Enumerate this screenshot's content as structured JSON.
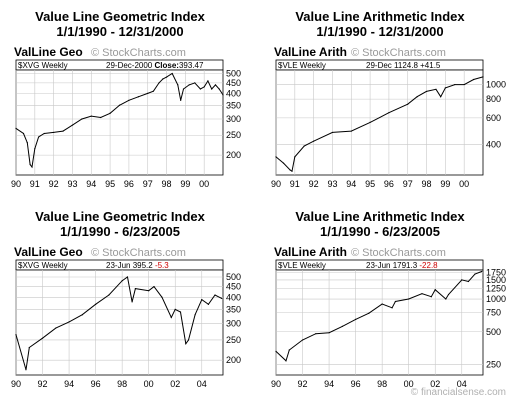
{
  "colors": {
    "line": "#000000",
    "grid": "#c8c8c8",
    "negative": "#cc0000",
    "watermark": "#9a9a9a"
  },
  "watermark": "© StockCharts.com",
  "footer": "© financialsense.com",
  "charts": [
    {
      "title": "Value Line Geometric Index",
      "subtitle": "1/1/1990 - 12/31/2000",
      "chart_data": {
        "type": "line",
        "x_unit": "year",
        "name": "ValLine Geo",
        "symbol": "$XVG Weekly",
        "readout": {
          "date": "29-Dec-2000",
          "label": "Close:",
          "value": "393.47",
          "change": ""
        },
        "xlim": [
          1990.0,
          2001.0
        ],
        "xticks": [
          {
            "x": 1990,
            "label": "90"
          },
          {
            "x": 1991,
            "label": "91"
          },
          {
            "x": 1992,
            "label": "92"
          },
          {
            "x": 1993,
            "label": "93"
          },
          {
            "x": 1994,
            "label": "94"
          },
          {
            "x": 1995,
            "label": "95"
          },
          {
            "x": 1996,
            "label": "96"
          },
          {
            "x": 1997,
            "label": "97"
          },
          {
            "x": 1998,
            "label": "98"
          },
          {
            "x": 1999,
            "label": "99"
          },
          {
            "x": 2000,
            "label": "00"
          }
        ],
        "yscale": "log",
        "ylim": [
          160,
          520
        ],
        "yticks": [
          {
            "v": 200,
            "label": "200"
          },
          {
            "v": 250,
            "label": "250"
          },
          {
            "v": 300,
            "label": "300"
          },
          {
            "v": 350,
            "label": "350"
          },
          {
            "v": 400,
            "label": "400"
          },
          {
            "v": 450,
            "label": "450"
          },
          {
            "v": 500,
            "label": "500"
          }
        ],
        "x": [
          1990.0,
          1990.4,
          1990.6,
          1990.75,
          1990.85,
          1991.0,
          1991.2,
          1991.5,
          1992.0,
          1992.5,
          1993.0,
          1993.5,
          1994.0,
          1994.5,
          1995.0,
          1995.5,
          1996.0,
          1996.5,
          1997.0,
          1997.3,
          1997.6,
          1997.8,
          1998.0,
          1998.3,
          1998.6,
          1998.75,
          1998.9,
          1999.2,
          1999.5,
          1999.8,
          2000.0,
          2000.2,
          2000.4,
          2000.6,
          2000.8,
          2001.0
        ],
        "values": [
          270,
          255,
          230,
          180,
          175,
          215,
          245,
          255,
          258,
          262,
          280,
          300,
          310,
          305,
          320,
          350,
          370,
          385,
          400,
          410,
          450,
          470,
          480,
          500,
          440,
          370,
          420,
          440,
          450,
          420,
          430,
          460,
          420,
          440,
          420,
          393
        ]
      }
    },
    {
      "title": "Value Line Arithmetic Index",
      "subtitle": "1/1/1990 - 12/31/2000",
      "chart_data": {
        "type": "line",
        "x_unit": "year",
        "name": "ValLine Arith",
        "symbol": "$VLE Weekly",
        "readout": {
          "date": "29-Dec",
          "label": "",
          "value": "1124.8",
          "change": "+41.5"
        },
        "xlim": [
          1990.0,
          2001.0
        ],
        "xticks": [
          {
            "x": 1990,
            "label": "90"
          },
          {
            "x": 1991,
            "label": "91"
          },
          {
            "x": 1992,
            "label": "92"
          },
          {
            "x": 1993,
            "label": "93"
          },
          {
            "x": 1994,
            "label": "94"
          },
          {
            "x": 1995,
            "label": "95"
          },
          {
            "x": 1996,
            "label": "96"
          },
          {
            "x": 1997,
            "label": "97"
          },
          {
            "x": 1998,
            "label": "98"
          },
          {
            "x": 1999,
            "label": "99"
          },
          {
            "x": 2000,
            "label": "00"
          }
        ],
        "yscale": "log",
        "ylim": [
          250,
          1250
        ],
        "yticks": [
          {
            "v": 400,
            "label": "400"
          },
          {
            "v": 600,
            "label": "600"
          },
          {
            "v": 800,
            "label": "800"
          },
          {
            "v": 1000,
            "label": "1000"
          }
        ],
        "x": [
          1990.0,
          1990.4,
          1990.75,
          1990.85,
          1991.0,
          1991.5,
          1992.0,
          1993.0,
          1994.0,
          1995.0,
          1996.0,
          1997.0,
          1997.5,
          1998.0,
          1998.5,
          1998.75,
          1999.0,
          1999.5,
          2000.0,
          2000.5,
          2001.0
        ],
        "values": [
          330,
          300,
          270,
          265,
          330,
          390,
          420,
          480,
          490,
          560,
          650,
          740,
          830,
          900,
          930,
          830,
          950,
          1000,
          1000,
          1080,
          1125
        ]
      }
    },
    {
      "title": "Value Line Geometric Index",
      "subtitle": "1/1/1990 - 6/23/2005",
      "chart_data": {
        "type": "line",
        "x_unit": "year",
        "name": "ValLine Geo",
        "symbol": "$XVG Weekly",
        "readout": {
          "date": "23-Jun",
          "label": "",
          "value": "395.2",
          "change": "-5.3"
        },
        "xlim": [
          1990.0,
          2005.6
        ],
        "xticks": [
          {
            "x": 1990,
            "label": "90"
          },
          {
            "x": 1992,
            "label": "92"
          },
          {
            "x": 1994,
            "label": "94"
          },
          {
            "x": 1996,
            "label": "96"
          },
          {
            "x": 1998,
            "label": "98"
          },
          {
            "x": 2000,
            "label": "00"
          },
          {
            "x": 2002,
            "label": "02"
          },
          {
            "x": 2004,
            "label": "04"
          }
        ],
        "yscale": "log",
        "ylim": [
          170,
          540
        ],
        "yticks": [
          {
            "v": 200,
            "label": "200"
          },
          {
            "v": 250,
            "label": "250"
          },
          {
            "v": 300,
            "label": "300"
          },
          {
            "v": 350,
            "label": "350"
          },
          {
            "v": 400,
            "label": "400"
          },
          {
            "v": 450,
            "label": "450"
          },
          {
            "v": 500,
            "label": "500"
          }
        ],
        "x": [
          1990.0,
          1990.75,
          1991.0,
          1992.0,
          1993.0,
          1994.0,
          1995.0,
          1996.0,
          1997.0,
          1998.0,
          1998.4,
          1998.75,
          1999.0,
          2000.0,
          2000.4,
          2001.0,
          2001.7,
          2002.0,
          2002.4,
          2002.8,
          2003.0,
          2003.5,
          2004.0,
          2004.5,
          2005.0,
          2005.5
        ],
        "values": [
          265,
          180,
          230,
          255,
          285,
          305,
          330,
          370,
          410,
          480,
          500,
          380,
          440,
          430,
          450,
          400,
          320,
          350,
          340,
          240,
          250,
          330,
          390,
          370,
          410,
          395
        ]
      }
    },
    {
      "title": "Value Line Arithmetic Index",
      "subtitle": "1/1/1990 - 6/23/2005",
      "chart_data": {
        "type": "line",
        "x_unit": "year",
        "name": "ValLine Arith",
        "symbol": "$VLE Weekly",
        "readout": {
          "date": "23-Jun",
          "label": "",
          "value": "1791.3",
          "change": "-22.8"
        },
        "xlim": [
          1990.0,
          2005.6
        ],
        "xticks": [
          {
            "x": 1990,
            "label": "90"
          },
          {
            "x": 1992,
            "label": "92"
          },
          {
            "x": 1994,
            "label": "94"
          },
          {
            "x": 1996,
            "label": "96"
          },
          {
            "x": 1998,
            "label": "98"
          },
          {
            "x": 2000,
            "label": "00"
          },
          {
            "x": 2002,
            "label": "02"
          },
          {
            "x": 2004,
            "label": "04"
          }
        ],
        "yscale": "log",
        "ylim": [
          200,
          1850
        ],
        "yticks": [
          {
            "v": 250,
            "label": "250"
          },
          {
            "v": 500,
            "label": "500"
          },
          {
            "v": 750,
            "label": "750"
          },
          {
            "v": 1000,
            "label": "1000"
          },
          {
            "v": 1250,
            "label": "1250"
          },
          {
            "v": 1500,
            "label": "1500"
          },
          {
            "v": 1750,
            "label": "1750"
          }
        ],
        "x": [
          1990.0,
          1990.75,
          1991.0,
          1992.0,
          1993.0,
          1994.0,
          1995.0,
          1996.0,
          1997.0,
          1998.0,
          1998.75,
          1999.0,
          2000.0,
          2001.0,
          2001.7,
          2002.0,
          2002.8,
          2003.0,
          2004.0,
          2004.5,
          2005.0,
          2005.5
        ],
        "values": [
          330,
          270,
          340,
          420,
          480,
          490,
          560,
          650,
          740,
          900,
          830,
          950,
          1000,
          1120,
          1050,
          1220,
          1000,
          1100,
          1500,
          1450,
          1700,
          1791
        ]
      }
    }
  ]
}
